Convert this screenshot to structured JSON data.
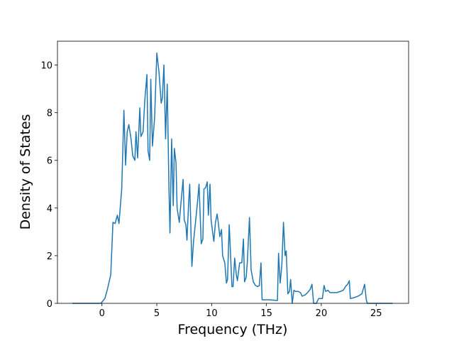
{
  "chart_data": {
    "type": "line",
    "x_label": "Frequency (THz)",
    "y_label": "Density of States",
    "color": "#1f77b4",
    "grid": false,
    "xlim": [
      -4.06,
      27.96
    ],
    "xticks": [
      0,
      5,
      10,
      15,
      20,
      25
    ],
    "ylim": [
      0,
      11.0
    ],
    "yticks": [
      0,
      2,
      4,
      6,
      8,
      10
    ],
    "x": [
      -2.7,
      -0.1,
      0.26,
      0.5,
      0.8,
      1.0,
      1.2,
      1.4,
      1.55,
      1.8,
      2.0,
      2.15,
      2.3,
      2.45,
      2.65,
      2.8,
      3.0,
      3.1,
      3.25,
      3.45,
      3.55,
      3.75,
      3.9,
      4.1,
      4.2,
      4.35,
      4.45,
      4.6,
      4.8,
      5.0,
      5.2,
      5.4,
      5.5,
      5.65,
      5.8,
      5.95,
      6.1,
      6.2,
      6.35,
      6.5,
      6.6,
      6.75,
      6.85,
      7.05,
      7.2,
      7.4,
      7.5,
      7.65,
      7.75,
      7.9,
      8.0,
      8.2,
      8.35,
      8.55,
      8.7,
      8.85,
      9.05,
      9.2,
      9.3,
      9.45,
      9.6,
      9.7,
      9.85,
      9.95,
      10.1,
      10.2,
      10.35,
      10.5,
      10.6,
      10.75,
      10.9,
      11.0,
      11.2,
      11.35,
      11.45,
      11.6,
      11.7,
      11.85,
      11.95,
      12.1,
      12.25,
      12.35,
      12.55,
      12.75,
      12.9,
      13.0,
      13.15,
      13.25,
      13.45,
      13.6,
      13.8,
      14.0,
      14.2,
      14.35,
      14.5,
      14.6,
      15.25,
      16.0,
      16.1,
      16.25,
      16.4,
      16.55,
      16.7,
      16.8,
      16.95,
      17.1,
      17.2,
      17.35,
      17.5,
      17.65,
      17.9,
      18.1,
      18.25,
      18.5,
      18.75,
      19.0,
      19.15,
      19.3,
      19.55,
      19.75,
      19.95,
      20.1,
      20.25,
      20.4,
      20.6,
      20.8,
      21.1,
      21.4,
      21.75,
      22.0,
      22.2,
      22.4,
      22.55,
      22.65,
      23.05,
      23.35,
      23.7,
      23.95,
      24.1,
      24.2,
      25.0,
      26.5
    ],
    "values": [
      0,
      0,
      0.2,
      0.6,
      1.2,
      3.4,
      3.35,
      3.7,
      3.35,
      4.8,
      8.1,
      5.8,
      7.2,
      7.5,
      6.9,
      6.2,
      6.0,
      7.2,
      6.1,
      8.2,
      7.0,
      7.2,
      8.5,
      9.6,
      6.4,
      6.0,
      9.4,
      6.6,
      7.8,
      10.5,
      9.7,
      8.4,
      8.6,
      10.0,
      6.9,
      9.2,
      5.0,
      2.95,
      6.9,
      4.1,
      6.5,
      5.9,
      4.0,
      3.4,
      4.2,
      5.2,
      3.5,
      3.3,
      2.65,
      4.2,
      5.0,
      1.55,
      2.6,
      3.5,
      4.2,
      5.0,
      2.5,
      2.7,
      4.8,
      4.85,
      5.1,
      3.7,
      5.0,
      3.5,
      2.95,
      2.6,
      3.4,
      3.75,
      3.4,
      2.8,
      3.1,
      2.0,
      1.7,
      0.85,
      1.0,
      3.3,
      2.3,
      0.7,
      0.7,
      1.9,
      1.2,
      0.95,
      1.7,
      1.7,
      2.7,
      0.9,
      1.1,
      1.7,
      3.6,
      1.4,
      0.9,
      0.75,
      0.7,
      0.75,
      1.7,
      0.15,
      0.15,
      0.12,
      2.1,
      0.85,
      1.6,
      3.4,
      2.0,
      2.2,
      0.4,
      0.5,
      1.0,
      0,
      0.55,
      0.5,
      0.5,
      0.45,
      0.3,
      0.35,
      0.45,
      0.6,
      0.8,
      0,
      0,
      0.2,
      0.2,
      0.2,
      0.75,
      0.5,
      0.55,
      0.45,
      0.45,
      0.45,
      0.5,
      0.55,
      0.7,
      0.8,
      0.95,
      0.2,
      0.25,
      0.3,
      0.4,
      0.8,
      0.15,
      0,
      0,
      0
    ]
  }
}
